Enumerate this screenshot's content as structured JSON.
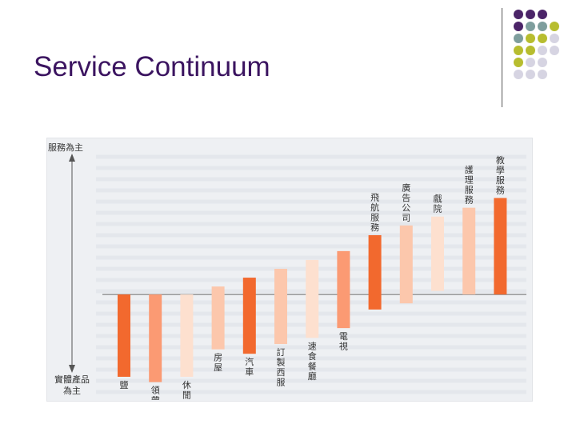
{
  "slide": {
    "title": "Service Continuum"
  },
  "colors": {
    "title": "#3b1460",
    "dot_purple": "#4b2468",
    "dot_teal": "#7e9e9d",
    "dot_olive": "#b7bd2f",
    "dot_lavender": "#d6d4e2",
    "bar_dark": "#f2692e",
    "bar_medium": "#fb9a73",
    "bar_light": "#fcc7ac",
    "bar_pale": "#fde0cf"
  },
  "chart_data": {
    "type": "bar",
    "axis_top_label": "服務為主",
    "axis_bottom_label_lines": [
      "實體產品",
      "為主"
    ],
    "categories": [
      "鹽",
      "領帶",
      "休閒食品",
      "房屋",
      "汽車",
      "訂製西服",
      "速食餐廳",
      "電視",
      "飛航服務",
      "廣告公司",
      "戲院",
      "護理服務",
      "教學服務"
    ],
    "ranges": [
      [
        0,
        -93
      ],
      [
        0,
        -99
      ],
      [
        0,
        -93
      ],
      [
        9,
        -62
      ],
      [
        19,
        -67
      ],
      [
        29,
        -56
      ],
      [
        39,
        -49
      ],
      [
        49,
        -38
      ],
      [
        67,
        -17
      ],
      [
        78,
        -10
      ],
      [
        88,
        4
      ],
      [
        98,
        0
      ],
      [
        109,
        0
      ]
    ],
    "colors": [
      "dark",
      "medium",
      "pale",
      "light",
      "dark",
      "light",
      "pale",
      "medium",
      "dark",
      "light",
      "pale",
      "light",
      "dark"
    ],
    "ylim": [
      -112,
      170
    ]
  }
}
